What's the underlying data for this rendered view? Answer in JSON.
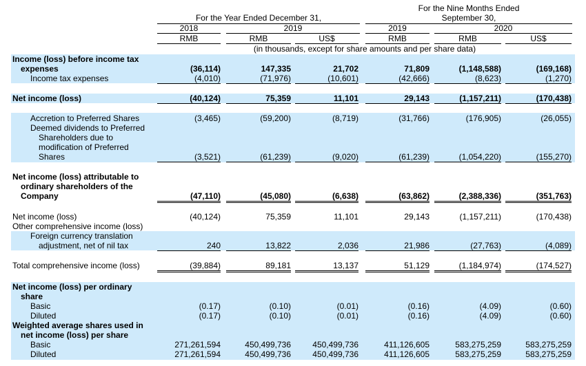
{
  "header": {
    "nine_months_line1": "For the Nine Months Ended",
    "year_ended": "For the Year Ended December 31,",
    "nine_months_line2": "September 30,",
    "years": [
      "2018",
      "2019",
      "2019",
      "2020"
    ],
    "currencies": [
      "RMB",
      "RMB",
      "US$",
      "RMB",
      "RMB",
      "US$"
    ],
    "note": "(in thousands, except for share amounts and per share data)"
  },
  "rows": [
    {
      "label": "Income (loss) before income tax"
    },
    {
      "label": "expenses",
      "values": [
        "(36,114)",
        "147,335",
        "21,702",
        "71,809",
        "(1,148,588)",
        "(169,168)"
      ]
    },
    {
      "label": "Income tax expenses",
      "values": [
        "(4,010)",
        "(71,976)",
        "(10,601)",
        "(42,666)",
        "(8,623)",
        "(1,270)"
      ]
    },
    {
      "label": "Net income (loss)",
      "values": [
        "(40,124)",
        "75,359",
        "11,101",
        "29,143",
        "(1,157,211)",
        "(170,438)"
      ]
    },
    {
      "label": "Accretion to Preferred Shares",
      "values": [
        "(3,465)",
        "(59,200)",
        "(8,719)",
        "(31,766)",
        "(176,905)",
        "(26,055)"
      ]
    },
    {
      "label": "Deemed dividends to Preferred"
    },
    {
      "label": "Shareholders due to"
    },
    {
      "label": "modification of Preferred"
    },
    {
      "label": "Shares",
      "values": [
        "(3,521)",
        "(61,239)",
        "(9,020)",
        "(61,239)",
        "(1,054,220)",
        "(155,270)"
      ]
    },
    {
      "label": "Net income (loss) attributable to"
    },
    {
      "label": "ordinary shareholders of the"
    },
    {
      "label": "Company",
      "values": [
        "(47,110)",
        "(45,080)",
        "(6,638)",
        "(63,862)",
        "(2,388,336)",
        "(351,763)"
      ]
    },
    {
      "label": "Net income (loss)",
      "values": [
        "(40,124)",
        "75,359",
        "11,101",
        "29,143",
        "(1,157,211)",
        "(170,438)"
      ]
    },
    {
      "label": "Other comprehensive income (loss)"
    },
    {
      "label": "Foreign currency translation"
    },
    {
      "label": "adjustment, net of nil tax",
      "values": [
        "240",
        "13,822",
        "2,036",
        "21,986",
        "(27,763)",
        "(4,089)"
      ]
    },
    {
      "label": "Total comprehensive income (loss)",
      "values": [
        "(39,884)",
        "89,181",
        "13,137",
        "51,129",
        "(1,184,974)",
        "(174,527)"
      ]
    },
    {
      "label": "Net income (loss) per ordinary"
    },
    {
      "label": "share"
    },
    {
      "label": "Basic",
      "values": [
        "(0.17)",
        "(0.10)",
        "(0.01)",
        "(0.16)",
        "(4.09)",
        "(0.60)"
      ]
    },
    {
      "label": "Diluted",
      "values": [
        "(0.17)",
        "(0.10)",
        "(0.01)",
        "(0.16)",
        "(4.09)",
        "(0.60)"
      ]
    },
    {
      "label": "Weighted average shares used in"
    },
    {
      "label": "net income (loss) per share"
    },
    {
      "label": "Basic",
      "values": [
        "271,261,594",
        "450,499,736",
        "450,499,736",
        "411,126,605",
        "583,275,259",
        "583,275,259"
      ]
    },
    {
      "label": "Diluted",
      "values": [
        "271,261,594",
        "450,499,736",
        "450,499,736",
        "411,126,605",
        "583,275,259",
        "583,275,259"
      ]
    }
  ]
}
